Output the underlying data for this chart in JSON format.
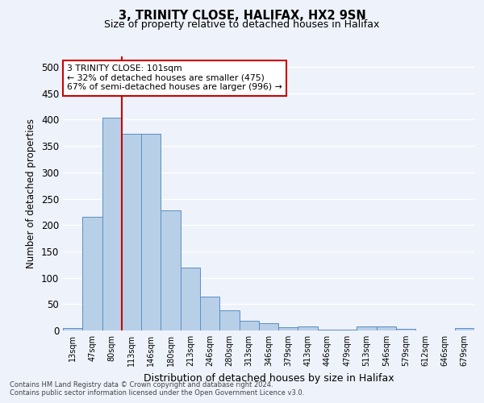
{
  "title": "3, TRINITY CLOSE, HALIFAX, HX2 9SN",
  "subtitle": "Size of property relative to detached houses in Halifax",
  "xlabel": "Distribution of detached houses by size in Halifax",
  "ylabel": "Number of detached properties",
  "categories": [
    "13sqm",
    "47sqm",
    "80sqm",
    "113sqm",
    "146sqm",
    "180sqm",
    "213sqm",
    "246sqm",
    "280sqm",
    "313sqm",
    "346sqm",
    "379sqm",
    "413sqm",
    "446sqm",
    "479sqm",
    "513sqm",
    "546sqm",
    "579sqm",
    "612sqm",
    "646sqm",
    "679sqm"
  ],
  "values": [
    4,
    216,
    403,
    373,
    373,
    228,
    119,
    65,
    39,
    18,
    14,
    6,
    7,
    1,
    1,
    7,
    7,
    3,
    0,
    0,
    4
  ],
  "bar_color": "#b8cfe8",
  "bar_edge_color": "#5a8fc2",
  "background_color": "#eef2fb",
  "grid_color": "#ffffff",
  "vline_x_index": 2,
  "vline_color": "#cc0000",
  "annotation_text": "3 TRINITY CLOSE: 101sqm\n← 32% of detached houses are smaller (475)\n67% of semi-detached houses are larger (996) →",
  "annotation_box_color": "#ffffff",
  "annotation_box_edge": "#cc0000",
  "ylim": [
    0,
    520
  ],
  "yticks": [
    0,
    50,
    100,
    150,
    200,
    250,
    300,
    350,
    400,
    450,
    500
  ],
  "footer_line1": "Contains HM Land Registry data © Crown copyright and database right 2024.",
  "footer_line2": "Contains public sector information licensed under the Open Government Licence v3.0."
}
